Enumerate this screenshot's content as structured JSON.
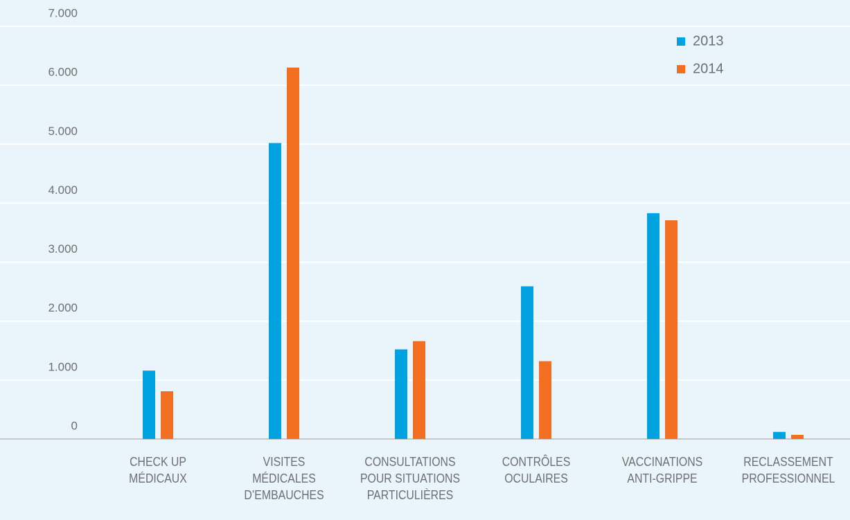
{
  "chart_data": {
    "type": "bar",
    "categories": [
      "CHECK UP\nMÉDICAUX",
      "VISITES\nMÉDICALES\nD’EMBAUCHES",
      "CONSULTATIONS\nPOUR SITUATIONS\nPARTICULIÈRES",
      "CONTRÔLES\nOCULAIRES",
      "VACCINATIONS\nANTI-GRIPPE",
      "RECLASSEMENT\nPROFESSIONNEL"
    ],
    "series": [
      {
        "name": "2013",
        "color": "#00a3e0",
        "values": [
          1160,
          5020,
          1520,
          2590,
          3830,
          120
        ]
      },
      {
        "name": "2014",
        "color": "#f26f21",
        "values": [
          810,
          6300,
          1660,
          1320,
          3710,
          70
        ]
      }
    ],
    "ylim": [
      0,
      7000
    ],
    "yticks": [
      0,
      {
        "value": 1000,
        "label": "1.000"
      },
      {
        "value": 2000,
        "label": "2.000"
      },
      {
        "value": 3000,
        "label": "3.000"
      },
      {
        "value": 4000,
        "label": "4.000"
      },
      {
        "value": 5000,
        "label": "5.000"
      },
      {
        "value": 6000,
        "label": "6.000"
      },
      {
        "value": 7000,
        "label": "7.000"
      }
    ],
    "grid": true,
    "legend": "top-right"
  }
}
